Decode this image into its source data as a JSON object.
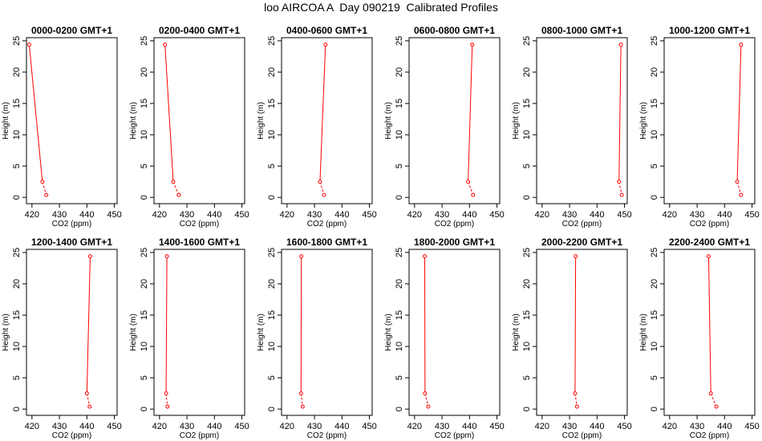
{
  "title": "loo AIRCOA A  Day 090219  Calibrated Profiles",
  "chart_data": [
    {
      "type": "line",
      "title": "0000-0200 GMT+1",
      "xlabel": "CO2 (ppm)",
      "ylabel": "Height (m)",
      "xlim": [
        418,
        451
      ],
      "ylim": [
        -1,
        25.5
      ],
      "xticks": [
        420,
        430,
        440,
        450
      ],
      "yticks": [
        0,
        5,
        10,
        15,
        20,
        25
      ],
      "series": [
        {
          "color": "#ff0000",
          "x": [
            419.0,
            423.8,
            425.2
          ],
          "y": [
            24.4,
            2.5,
            0.4
          ]
        }
      ]
    },
    {
      "type": "line",
      "title": "0200-0400 GMT+1",
      "xlabel": "CO2 (ppm)",
      "ylabel": "Height (m)",
      "xlim": [
        418,
        451
      ],
      "ylim": [
        -1,
        25.5
      ],
      "xticks": [
        420,
        430,
        440,
        450
      ],
      "yticks": [
        0,
        5,
        10,
        15,
        20,
        25
      ],
      "series": [
        {
          "color": "#ff0000",
          "x": [
            422.0,
            425.0,
            427.0
          ],
          "y": [
            24.4,
            2.5,
            0.4
          ]
        }
      ]
    },
    {
      "type": "line",
      "title": "0400-0600 GMT+1",
      "xlabel": "CO2 (ppm)",
      "ylabel": "Height (m)",
      "xlim": [
        418,
        451
      ],
      "ylim": [
        -1,
        25.5
      ],
      "xticks": [
        420,
        430,
        440,
        450
      ],
      "yticks": [
        0,
        5,
        10,
        15,
        20,
        25
      ],
      "series": [
        {
          "color": "#ff0000",
          "x": [
            434.0,
            432.0,
            433.5
          ],
          "y": [
            24.4,
            2.5,
            0.4
          ]
        }
      ]
    },
    {
      "type": "line",
      "title": "0600-0800 GMT+1",
      "xlabel": "CO2 (ppm)",
      "ylabel": "Height (m)",
      "xlim": [
        418,
        451
      ],
      "ylim": [
        -1,
        25.5
      ],
      "xticks": [
        420,
        430,
        440,
        450
      ],
      "yticks": [
        0,
        5,
        10,
        15,
        20,
        25
      ],
      "series": [
        {
          "color": "#ff0000",
          "x": [
            441.0,
            439.5,
            441.3
          ],
          "y": [
            24.4,
            2.5,
            0.4
          ]
        }
      ]
    },
    {
      "type": "line",
      "title": "0800-1000 GMT+1",
      "xlabel": "CO2 (ppm)",
      "ylabel": "Height (m)",
      "xlim": [
        418,
        451
      ],
      "ylim": [
        -1,
        25.5
      ],
      "xticks": [
        420,
        430,
        440,
        450
      ],
      "yticks": [
        0,
        5,
        10,
        15,
        20,
        25
      ],
      "series": [
        {
          "color": "#ff0000",
          "x": [
            448.7,
            448.0,
            449.0
          ],
          "y": [
            24.4,
            2.5,
            0.4
          ]
        }
      ]
    },
    {
      "type": "line",
      "title": "1000-1200 GMT+1",
      "xlabel": "CO2 (ppm)",
      "ylabel": "Height (m)",
      "xlim": [
        418,
        451
      ],
      "ylim": [
        -1,
        25.5
      ],
      "xticks": [
        420,
        430,
        440,
        450
      ],
      "yticks": [
        0,
        5,
        10,
        15,
        20,
        25
      ],
      "series": [
        {
          "color": "#ff0000",
          "x": [
            446.0,
            444.6,
            446.0
          ],
          "y": [
            24.4,
            2.5,
            0.4
          ]
        }
      ]
    },
    {
      "type": "line",
      "title": "1200-1400 GMT+1",
      "xlabel": "CO2 (ppm)",
      "ylabel": "Height (m)",
      "xlim": [
        418,
        451
      ],
      "ylim": [
        -1,
        25.5
      ],
      "xticks": [
        420,
        430,
        440,
        450
      ],
      "yticks": [
        0,
        5,
        10,
        15,
        20,
        25
      ],
      "series": [
        {
          "color": "#ff0000",
          "x": [
            441.2,
            440.0,
            441.0
          ],
          "y": [
            24.4,
            2.5,
            0.4
          ]
        }
      ]
    },
    {
      "type": "line",
      "title": "1400-1600 GMT+1",
      "xlabel": "CO2 (ppm)",
      "ylabel": "Height (m)",
      "xlim": [
        418,
        451
      ],
      "ylim": [
        -1,
        25.5
      ],
      "xticks": [
        420,
        430,
        440,
        450
      ],
      "yticks": [
        0,
        5,
        10,
        15,
        20,
        25
      ],
      "series": [
        {
          "color": "#ff0000",
          "x": [
            422.7,
            422.4,
            422.9
          ],
          "y": [
            24.4,
            2.5,
            0.4
          ]
        }
      ]
    },
    {
      "type": "line",
      "title": "1600-1800 GMT+1",
      "xlabel": "CO2 (ppm)",
      "ylabel": "Height (m)",
      "xlim": [
        418,
        451
      ],
      "ylim": [
        -1,
        25.5
      ],
      "xticks": [
        420,
        430,
        440,
        450
      ],
      "yticks": [
        0,
        5,
        10,
        15,
        20,
        25
      ],
      "series": [
        {
          "color": "#ff0000",
          "x": [
            425.2,
            425.1,
            425.7
          ],
          "y": [
            24.4,
            2.5,
            0.4
          ]
        }
      ]
    },
    {
      "type": "line",
      "title": "1800-2000 GMT+1",
      "xlabel": "CO2 (ppm)",
      "ylabel": "Height (m)",
      "xlim": [
        418,
        451
      ],
      "ylim": [
        -1,
        25.5
      ],
      "xticks": [
        420,
        430,
        440,
        450
      ],
      "yticks": [
        0,
        5,
        10,
        15,
        20,
        25
      ],
      "series": [
        {
          "color": "#ff0000",
          "x": [
            423.7,
            423.8,
            425.0
          ],
          "y": [
            24.4,
            2.5,
            0.4
          ]
        }
      ]
    },
    {
      "type": "line",
      "title": "2000-2200 GMT+1",
      "xlabel": "CO2 (ppm)",
      "ylabel": "Height (m)",
      "xlim": [
        418,
        451
      ],
      "ylim": [
        -1,
        25.5
      ],
      "xticks": [
        420,
        430,
        440,
        450
      ],
      "yticks": [
        0,
        5,
        10,
        15,
        20,
        25
      ],
      "series": [
        {
          "color": "#ff0000",
          "x": [
            432.2,
            432.0,
            432.7
          ],
          "y": [
            24.4,
            2.5,
            0.4
          ]
        }
      ]
    },
    {
      "type": "line",
      "title": "2200-2400 GMT+1",
      "xlabel": "CO2 (ppm)",
      "ylabel": "Height (m)",
      "xlim": [
        418,
        451
      ],
      "ylim": [
        -1,
        25.5
      ],
      "xticks": [
        420,
        430,
        440,
        450
      ],
      "yticks": [
        0,
        5,
        10,
        15,
        20,
        25
      ],
      "series": [
        {
          "color": "#ff0000",
          "x": [
            434.2,
            435.0,
            437.0
          ],
          "y": [
            24.4,
            2.5,
            0.4
          ]
        }
      ]
    }
  ]
}
